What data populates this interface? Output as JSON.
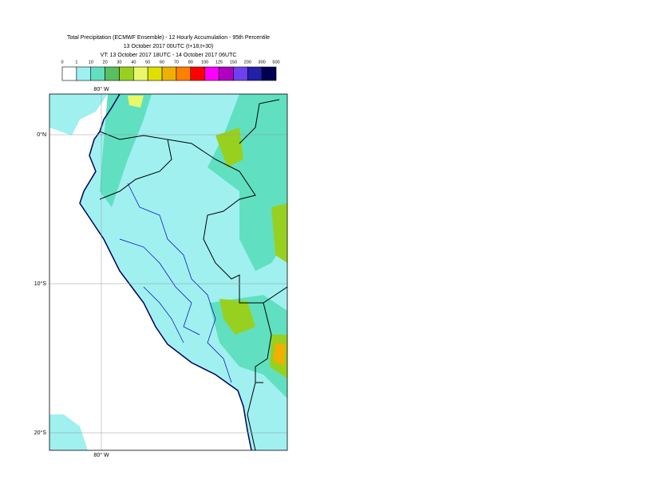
{
  "header": {
    "title_lines": [
      "Total Precipitation (ECMWF Ensemble) - 12 Hourly Accumulation - 95th Percentile",
      "13 October 2017 00UTC (t+18,t+30)",
      "VT: 13 October 2017 18UTC - 14 October 2017 06UTC"
    ]
  },
  "legend": {
    "labels": [
      "0",
      "1",
      "10",
      "20",
      "30",
      "40",
      "50",
      "60",
      "70",
      "80",
      "100",
      "125",
      "150",
      "200",
      "300",
      "500"
    ],
    "colors": [
      "#ffffff",
      "#a0f0f0",
      "#60e0c0",
      "#58c060",
      "#98d020",
      "#e8f868",
      "#e0e000",
      "#f0b000",
      "#ff8000",
      "#ff0000",
      "#ff00ff",
      "#b000c0",
      "#7040f0",
      "#2020a8",
      "#000050"
    ]
  },
  "map": {
    "lon_labels": [
      "80° W",
      "80° W"
    ],
    "lat_labels": [
      "0°N",
      "10°S",
      "20°S"
    ]
  }
}
